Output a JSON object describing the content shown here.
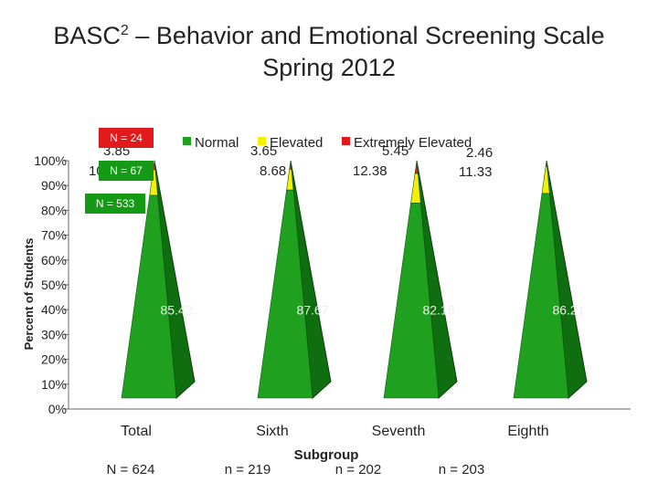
{
  "title": {
    "prefix": "BASC",
    "superscript": "2",
    "suffix": " – Behavior and Emotional Screening Scale",
    "line2": "Spring 2012"
  },
  "badges": [
    {
      "label": "N = 24",
      "color": "#e31a1c"
    },
    {
      "label": "N = 67",
      "color": "#159a15"
    },
    {
      "label": "N = 533",
      "color": "#159a15"
    }
  ],
  "colors": {
    "normal": "#1fa01f",
    "elevated": "#f4f000",
    "extremely_elevated": "#e31a1c",
    "side": "#0f6e0f"
  },
  "chart_data": {
    "type": "bar",
    "shape": "3d-pyramid-stacked",
    "xlabel": "Subgroup",
    "ylabel": "Percent of Students",
    "ylim": [
      0,
      100
    ],
    "y_ticks": [
      "0%",
      "10%",
      "20%",
      "30%",
      "40%",
      "50%",
      "60%",
      "70%",
      "80%",
      "90%",
      "100%"
    ],
    "categories": [
      "Total",
      "Sixth",
      "Seventh",
      "Eighth"
    ],
    "sample_sizes": [
      "N = 624",
      "n = 219",
      "n = 202",
      "n = 203"
    ],
    "legend": [
      "Normal",
      "Elevated",
      "Extremely Elevated"
    ],
    "legend_position": "top",
    "series": [
      {
        "name": "Normal",
        "values": [
          85.42,
          87.67,
          82.18,
          86.21
        ],
        "labels": [
          "85.42",
          "87.67",
          "82.18",
          "86.21"
        ]
      },
      {
        "name": "Elevated",
        "values": [
          10.74,
          8.68,
          12.38,
          11.33
        ],
        "labels": [
          "10.74",
          "8.68",
          "12.38",
          "11.33"
        ]
      },
      {
        "name": "Extremely Elevated",
        "values": [
          3.85,
          3.65,
          5.45,
          2.46
        ],
        "labels": [
          "3.85",
          "3.65",
          "5.45",
          "2.46"
        ]
      }
    ]
  }
}
